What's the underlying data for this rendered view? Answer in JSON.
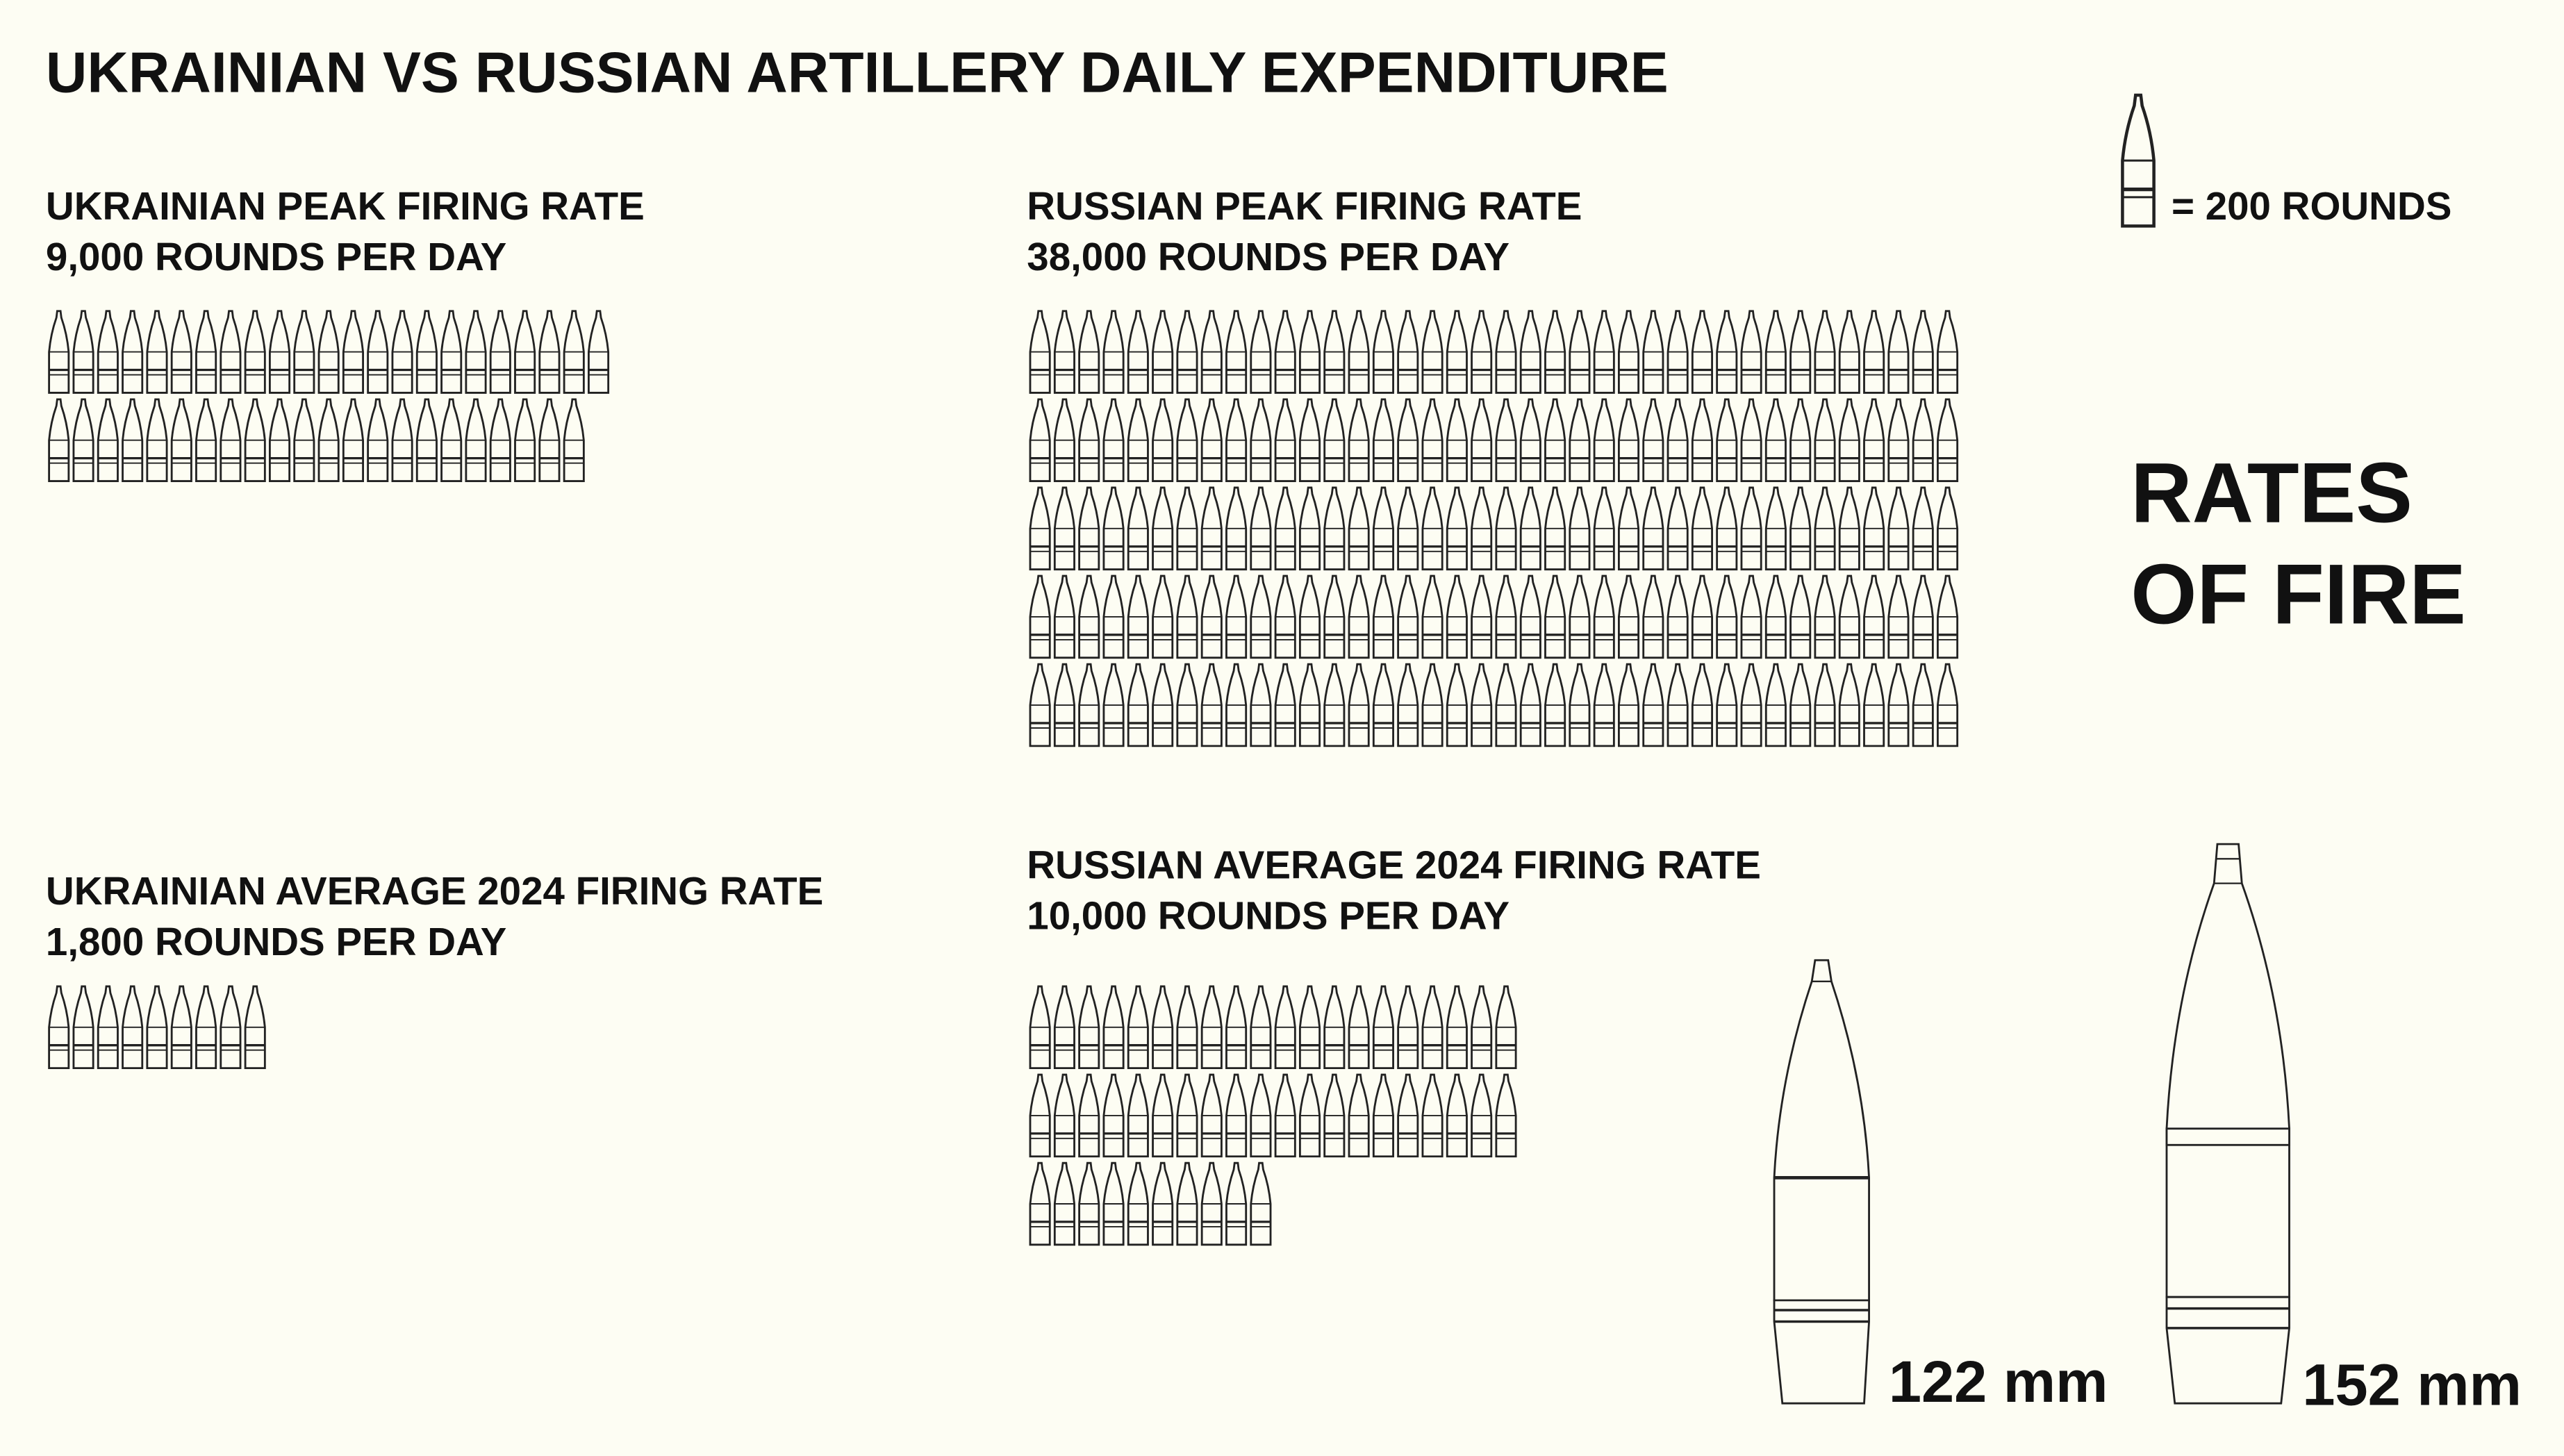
{
  "chart_data": {
    "type": "pictogram",
    "title": "UKRAINIAN VS RUSSIAN ARTILLERY DAILY EXPENDITURE",
    "legend": {
      "value": 200,
      "label": "= 200 ROUNDS"
    },
    "side_title": [
      "RATES",
      "OF FIRE"
    ],
    "groups": [
      {
        "title": "UKRAINIAN PEAK FIRING RATE",
        "subtitle": "9,000 ROUNDS PER DAY",
        "value": 9000
      },
      {
        "title": "RUSSIAN PEAK FIRING RATE",
        "subtitle": "38,000 ROUNDS PER DAY",
        "value": 38000
      },
      {
        "title": "UKRAINIAN AVERAGE 2024 FIRING RATE",
        "subtitle": "1,800 ROUNDS PER DAY",
        "value": 1800
      },
      {
        "title": "RUSSIAN AVERAGE 2024 FIRING RATE",
        "subtitle": "10,000 ROUNDS PER DAY",
        "value": 10000
      }
    ],
    "shells": [
      "122 mm",
      "152 mm"
    ]
  }
}
